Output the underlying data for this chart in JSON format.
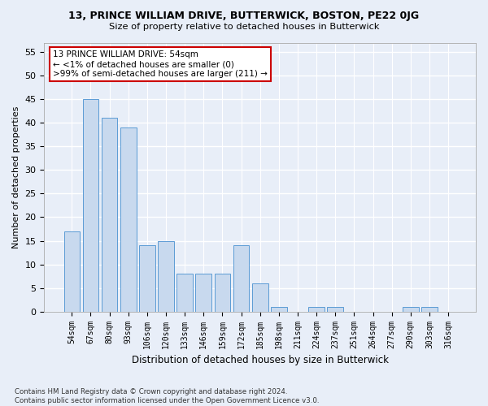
{
  "title": "13, PRINCE WILLIAM DRIVE, BUTTERWICK, BOSTON, PE22 0JG",
  "subtitle": "Size of property relative to detached houses in Butterwick",
  "xlabel": "Distribution of detached houses by size in Butterwick",
  "ylabel": "Number of detached properties",
  "categories": [
    "54sqm",
    "67sqm",
    "80sqm",
    "93sqm",
    "106sqm",
    "120sqm",
    "133sqm",
    "146sqm",
    "159sqm",
    "172sqm",
    "185sqm",
    "198sqm",
    "211sqm",
    "224sqm",
    "237sqm",
    "251sqm",
    "264sqm",
    "277sqm",
    "290sqm",
    "303sqm",
    "316sqm"
  ],
  "values": [
    17,
    45,
    41,
    39,
    14,
    15,
    8,
    8,
    8,
    14,
    6,
    1,
    0,
    1,
    1,
    0,
    0,
    0,
    1,
    1,
    0
  ],
  "bar_color": "#c8d9ee",
  "bar_edge_color": "#5b9bd5",
  "background_color": "#e8eef8",
  "grid_color": "#ffffff",
  "annotation_box_text": "13 PRINCE WILLIAM DRIVE: 54sqm\n← <1% of detached houses are smaller (0)\n>99% of semi-detached houses are larger (211) →",
  "annotation_box_color": "#ffffff",
  "annotation_box_edge_color": "#cc0000",
  "footer_text": "Contains HM Land Registry data © Crown copyright and database right 2024.\nContains public sector information licensed under the Open Government Licence v3.0.",
  "ylim": [
    0,
    57
  ],
  "yticks": [
    0,
    5,
    10,
    15,
    20,
    25,
    30,
    35,
    40,
    45,
    50,
    55
  ]
}
